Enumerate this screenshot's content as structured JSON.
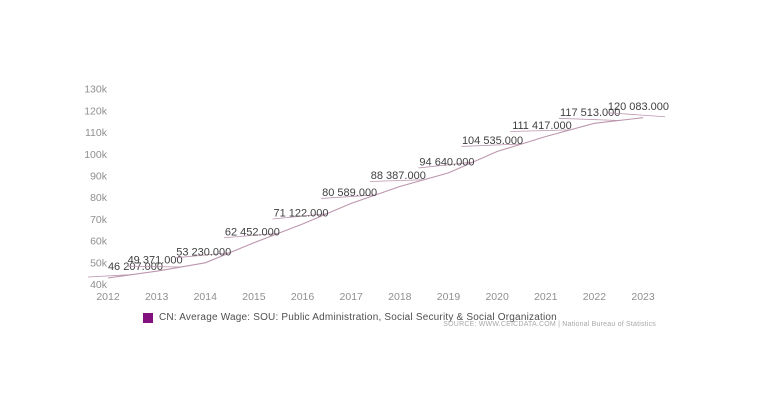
{
  "chart_data": {
    "type": "line",
    "title": "",
    "x": [
      2012,
      2013,
      2014,
      2015,
      2016,
      2017,
      2018,
      2019,
      2020,
      2021,
      2022,
      2023
    ],
    "x_tick_labels": [
      "2012",
      "2013",
      "2014",
      "2015",
      "2016",
      "2017",
      "2018",
      "2019",
      "2020",
      "2021",
      "2022",
      "2023"
    ],
    "y_ticks": [
      {
        "value": 40000,
        "label": "40k"
      },
      {
        "value": 50000,
        "label": "50k"
      },
      {
        "value": 60000,
        "label": "60k"
      },
      {
        "value": 70000,
        "label": "70k"
      },
      {
        "value": 80000,
        "label": "80k"
      },
      {
        "value": 90000,
        "label": "90k"
      },
      {
        "value": 100000,
        "label": "100k"
      },
      {
        "value": 110000,
        "label": "110k"
      },
      {
        "value": 120000,
        "label": "120k"
      },
      {
        "value": 130000,
        "label": "130k"
      }
    ],
    "ylim": [
      40000,
      130000
    ],
    "grid": false,
    "legend_position": "bottom-left",
    "series": [
      {
        "name": "CN: Average Wage: SOU: Public Administration, Social Security & Social Organization",
        "color": "#bb96ad",
        "values": [
          46207,
          49371,
          53230,
          62452,
          71122,
          80589,
          88387,
          94640,
          104535,
          111417,
          117513,
          120083
        ],
        "point_labels": [
          "46 207.000",
          "49 371.000",
          "53 230.000",
          "62 452.000",
          "71 122.000",
          "80 589.000",
          "88 387.000",
          "94 640.000",
          "104 535.000",
          "111 417.000",
          "117 513.000",
          "120 083.000"
        ]
      }
    ]
  },
  "legend": {
    "swatch_color": "#83127e",
    "label": "CN: Average Wage: SOU: Public Administration, Social Security & Social Organization"
  },
  "source": {
    "text": "SOURCE: WWW.CEICDATA.COM | National Bureau of Statistics"
  }
}
